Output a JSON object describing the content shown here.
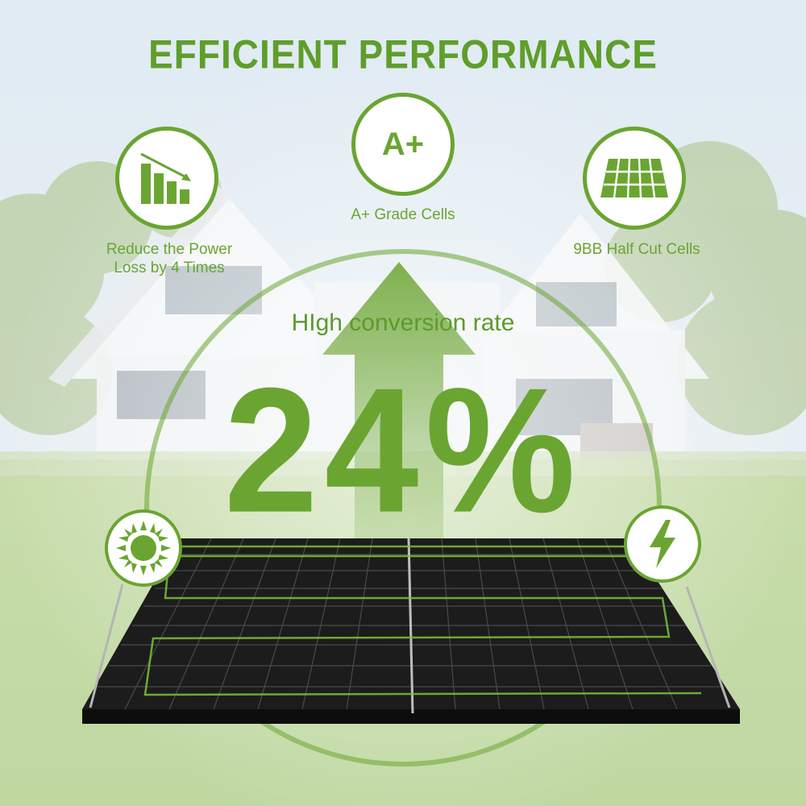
{
  "title": "EFFICIENT PERFORMANCE",
  "features": {
    "power_loss": {
      "icon": "declining-bar-chart-icon",
      "caption_line1": "Reduce the Power",
      "caption_line2": "Loss by 4 Times"
    },
    "grade": {
      "icon_text": "A+",
      "caption": "A+ Grade Cells"
    },
    "cells": {
      "icon": "solar-cells-icon",
      "caption": "9BB Half Cut Cells"
    }
  },
  "conversion": {
    "label": "HIgh conversion rate",
    "value": "24%"
  },
  "side_icons": {
    "left": "sun-icon",
    "right": "lightning-bolt-icon"
  },
  "colors": {
    "accent": "#6aa531",
    "sky": "#c9dbe9",
    "lawn": "#9cc36a",
    "panel": "#1c1c1c"
  }
}
